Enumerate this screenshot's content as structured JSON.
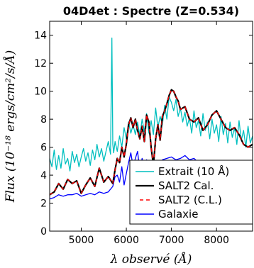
{
  "chart_data": {
    "type": "line",
    "title": "04D4et : Spectre (Z=0.534)",
    "xlabel": "λ observé (Å)",
    "ylabel": "Flux (10⁻¹⁸ ergs/cm²/s/Å)",
    "xlim": [
      4300,
      8800
    ],
    "ylim": [
      0,
      15
    ],
    "xticks": [
      5000,
      6000,
      7000,
      8000
    ],
    "yticks": [
      0,
      2,
      4,
      6,
      8,
      10,
      12,
      14
    ],
    "legend_position": "lower-right",
    "series": [
      {
        "name": "Extrait (10 Å)",
        "color": "#00bfbf",
        "style": "solid",
        "x": [
          4300,
          4350,
          4400,
          4450,
          4500,
          4550,
          4600,
          4650,
          4700,
          4750,
          4800,
          4850,
          4900,
          4950,
          5000,
          5050,
          5100,
          5150,
          5200,
          5250,
          5300,
          5350,
          5400,
          5450,
          5500,
          5550,
          5600,
          5650,
          5680,
          5700,
          5720,
          5750,
          5800,
          5850,
          5900,
          5950,
          6000,
          6050,
          6100,
          6150,
          6200,
          6250,
          6300,
          6350,
          6400,
          6450,
          6500,
          6550,
          6600,
          6650,
          6700,
          6750,
          6800,
          6850,
          6900,
          6950,
          7000,
          7050,
          7100,
          7150,
          7200,
          7250,
          7300,
          7350,
          7400,
          7450,
          7500,
          7550,
          7600,
          7650,
          7700,
          7750,
          7800,
          7850,
          7900,
          7950,
          8000,
          8050,
          8100,
          8150,
          8200,
          8250,
          8300,
          8350,
          8400,
          8450,
          8500,
          8550,
          8600,
          8650,
          8700,
          8750,
          8800
        ],
        "y": [
          5.2,
          4.6,
          5.8,
          4.4,
          5.4,
          4.5,
          5.9,
          4.8,
          5.2,
          4.3,
          5.7,
          4.9,
          5.5,
          4.6,
          5.3,
          5.9,
          5.0,
          5.6,
          4.7,
          5.8,
          5.1,
          6.2,
          5.3,
          5.9,
          5.0,
          5.7,
          6.4,
          5.5,
          13.8,
          6.2,
          5.6,
          6.4,
          5.7,
          6.8,
          6.0,
          7.4,
          6.6,
          7.8,
          7.0,
          7.6,
          6.9,
          7.8,
          6.8,
          8.0,
          7.1,
          8.4,
          7.0,
          7.9,
          6.9,
          8.8,
          7.4,
          8.2,
          7.6,
          9.0,
          8.0,
          9.6,
          9.2,
          8.6,
          9.4,
          8.2,
          8.8,
          7.8,
          8.5,
          7.5,
          8.1,
          7.0,
          8.6,
          7.4,
          7.9,
          6.8,
          8.4,
          7.2,
          7.8,
          6.6,
          8.0,
          7.0,
          7.6,
          6.4,
          8.2,
          6.9,
          7.7,
          6.3,
          7.8,
          6.7,
          7.4,
          6.2,
          7.9,
          6.5,
          7.2,
          6.0,
          7.5,
          6.3,
          6.8
        ]
      },
      {
        "name": "SALT2 Cal.",
        "color": "#000000",
        "style": "solid",
        "x": [
          4300,
          4400,
          4500,
          4600,
          4700,
          4800,
          4900,
          5000,
          5100,
          5200,
          5300,
          5400,
          5500,
          5600,
          5700,
          5750,
          5800,
          5850,
          5900,
          5950,
          6000,
          6050,
          6100,
          6150,
          6200,
          6250,
          6300,
          6350,
          6400,
          6450,
          6500,
          6550,
          6600,
          6650,
          6700,
          6750,
          6800,
          6850,
          6900,
          6950,
          7000,
          7050,
          7100,
          7150,
          7200,
          7300,
          7400,
          7500,
          7600,
          7700,
          7800,
          7900,
          8000,
          8100,
          8200,
          8300,
          8400,
          8500,
          8600,
          8700,
          8800
        ],
        "y": [
          2.6,
          2.8,
          3.4,
          3.0,
          3.7,
          3.4,
          3.6,
          2.7,
          3.3,
          3.8,
          3.2,
          4.5,
          3.5,
          3.9,
          3.4,
          4.4,
          5.2,
          4.9,
          6.0,
          5.3,
          6.2,
          7.6,
          8.1,
          7.4,
          8.0,
          7.2,
          6.6,
          7.5,
          6.4,
          8.3,
          7.8,
          6.0,
          4.7,
          6.6,
          7.6,
          6.5,
          8.2,
          8.6,
          9.1,
          9.7,
          10.1,
          10.0,
          9.6,
          9.3,
          8.7,
          8.9,
          8.0,
          7.8,
          8.1,
          7.2,
          7.6,
          8.3,
          8.6,
          8.0,
          7.4,
          7.2,
          7.4,
          6.9,
          6.2,
          6.0,
          6.2
        ]
      },
      {
        "name": "SALT2 (C.L.)",
        "color": "#ff0000",
        "style": "dashed",
        "x": [
          4300,
          4400,
          4500,
          4600,
          4700,
          4800,
          4900,
          5000,
          5100,
          5200,
          5300,
          5400,
          5500,
          5600,
          5700,
          5750,
          5800,
          5850,
          5900,
          5950,
          6000,
          6050,
          6100,
          6150,
          6200,
          6250,
          6300,
          6350,
          6400,
          6450,
          6500,
          6550,
          6600,
          6650,
          6700,
          6750,
          6800,
          6850,
          6900,
          6950,
          7000,
          7050,
          7100,
          7150,
          7200,
          7300,
          7400,
          7500,
          7600,
          7700,
          7800,
          7900,
          8000,
          8100,
          8200,
          8300,
          8400,
          8500,
          8600,
          8700,
          8800
        ],
        "y": [
          2.6,
          2.8,
          3.4,
          3.0,
          3.7,
          3.4,
          3.6,
          2.7,
          3.3,
          3.8,
          3.2,
          4.5,
          3.5,
          3.9,
          3.4,
          4.4,
          5.2,
          4.9,
          6.0,
          5.3,
          6.2,
          7.6,
          8.1,
          7.4,
          8.0,
          7.2,
          6.6,
          7.5,
          6.4,
          8.3,
          7.8,
          6.0,
          4.7,
          6.6,
          7.6,
          6.5,
          8.2,
          8.6,
          9.1,
          9.7,
          10.1,
          10.0,
          9.6,
          9.3,
          8.7,
          8.9,
          8.0,
          7.8,
          8.1,
          7.2,
          7.6,
          8.3,
          8.6,
          8.0,
          7.4,
          7.2,
          7.4,
          6.9,
          6.2,
          6.0,
          6.2
        ]
      },
      {
        "name": "Galaxie",
        "color": "#0000ff",
        "style": "solid",
        "x": [
          4300,
          4400,
          4500,
          4600,
          4700,
          4800,
          4900,
          5000,
          5100,
          5200,
          5300,
          5400,
          5500,
          5600,
          5700,
          5750,
          5800,
          5850,
          5900,
          5950,
          6000,
          6050,
          6100,
          6150,
          6200,
          6250,
          6300,
          6350,
          6400,
          6450,
          6500,
          6550,
          6600,
          6650,
          6700,
          6750,
          6800,
          6900,
          7000,
          7100,
          7200,
          7300,
          7400,
          7500,
          7600,
          7700,
          7800,
          7900,
          8000,
          8100,
          8200,
          8300,
          8400,
          8500,
          8600,
          8700,
          8800
        ],
        "y": [
          2.3,
          2.4,
          2.6,
          2.5,
          2.6,
          2.6,
          2.7,
          2.5,
          2.6,
          2.7,
          2.6,
          2.8,
          2.7,
          2.8,
          3.2,
          3.9,
          4.0,
          3.5,
          4.6,
          3.3,
          4.1,
          4.9,
          5.6,
          4.6,
          5.2,
          5.7,
          4.3,
          5.2,
          4.4,
          5.1,
          4.9,
          4.2,
          4.6,
          4.8,
          5.0,
          4.7,
          5.1,
          5.2,
          5.3,
          5.1,
          5.2,
          5.4,
          5.1,
          5.2,
          4.9,
          5.0,
          4.6,
          4.5,
          4.6,
          4.5,
          4.4,
          4.3,
          4.3,
          4.2,
          4.1,
          4.0,
          3.9
        ]
      }
    ]
  }
}
